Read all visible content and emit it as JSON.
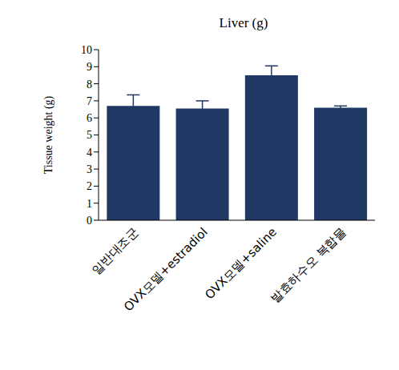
{
  "chart_data": {
    "type": "bar",
    "title": "Liver (g)",
    "y_label": "Tissue weight (g)",
    "categories": [
      "일반대조군",
      "OVX모델+estradiol",
      "OVX모델+saline",
      "발효하수오 복합물"
    ],
    "values": [
      6.7,
      6.55,
      8.5,
      6.6
    ],
    "errors": [
      0.65,
      0.45,
      0.55,
      0.1
    ],
    "color": "#203864",
    "ylim": [
      0,
      10
    ],
    "yticks": [
      0,
      1,
      2,
      3,
      4,
      5,
      6,
      7,
      8,
      9,
      10
    ],
    "grid": false
  }
}
